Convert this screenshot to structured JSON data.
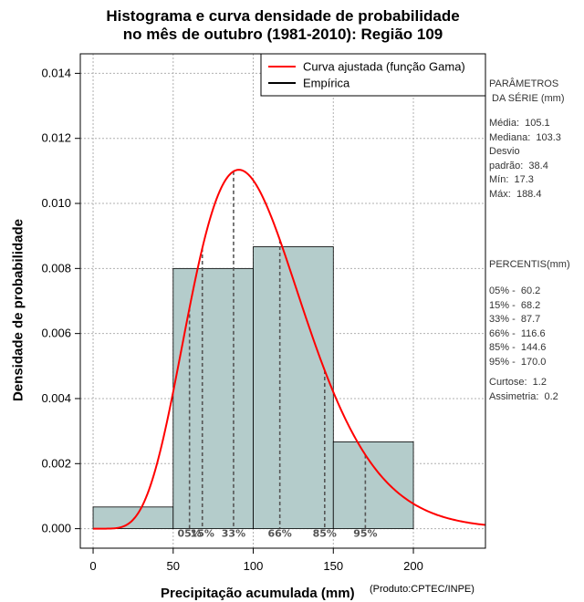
{
  "chart_data": {
    "type": "bar",
    "title_line1": "Histograma e curva densidade de probabilidade",
    "title_line2": "no mês de outubro (1981-2010): Região 109",
    "xlabel": "Precipitação acumulada (mm)",
    "ylabel": "Densidade de probabilidade",
    "credit": "(Produto:CPTEC/INPE)",
    "xlim": [
      -8,
      245
    ],
    "ylim": [
      -0.0006,
      0.0146
    ],
    "x_ticks": [
      0,
      50,
      100,
      150,
      200
    ],
    "y_ticks": [
      0.0,
      0.002,
      0.004,
      0.006,
      0.008,
      0.01,
      0.012,
      0.014
    ],
    "y_tick_labels": [
      "0.000",
      "0.002",
      "0.004",
      "0.006",
      "0.008",
      "0.010",
      "0.012",
      "0.014"
    ],
    "grid": true,
    "bars": [
      {
        "from": 0,
        "to": 50,
        "density": 0.000667
      },
      {
        "from": 50,
        "to": 100,
        "density": 0.008
      },
      {
        "from": 100,
        "to": 150,
        "density": 0.00867
      },
      {
        "from": 150,
        "to": 200,
        "density": 0.00267
      }
    ],
    "curve": {
      "name": "Curva ajustada (função Gama)",
      "color": "#ff0000",
      "shape_k": 7.5,
      "scale_theta": 14.0
    },
    "legend": [
      {
        "label": "Curva ajustada (função Gama)",
        "color": "#ff0000"
      },
      {
        "label": "Empírica",
        "color": "#000000"
      }
    ],
    "percentile_lines": [
      {
        "label": "05%",
        "x": 60.2
      },
      {
        "label": "15%",
        "x": 68.2
      },
      {
        "label": "33%",
        "x": 87.7
      },
      {
        "label": "66%",
        "x": 116.6
      },
      {
        "label": "85%",
        "x": 144.6
      },
      {
        "label": "95%",
        "x": 170.0
      }
    ]
  },
  "side_panel": {
    "params_title": "PARÂMETROS\n DA SÉRIE (mm)",
    "params_body": "Média:  105.1\nMediana:  103.3\nDesvio\npadrão:  38.4\nMín:  17.3\nMáx:  188.4",
    "percentis_title": "PERCENTIS(mm)",
    "percentis_body": "05% -  60.2\n15% -  68.2\n33% -  87.7\n66% -  116.6\n85% -  144.6\n95% -  170.0",
    "stats_body": "Curtose:  1.2\nAssimetria:  0.2"
  },
  "colors": {
    "bar_fill": "#b4cccb",
    "bar_stroke": "#000000",
    "grid": "#b0b0b0",
    "percentile": "#555555"
  }
}
